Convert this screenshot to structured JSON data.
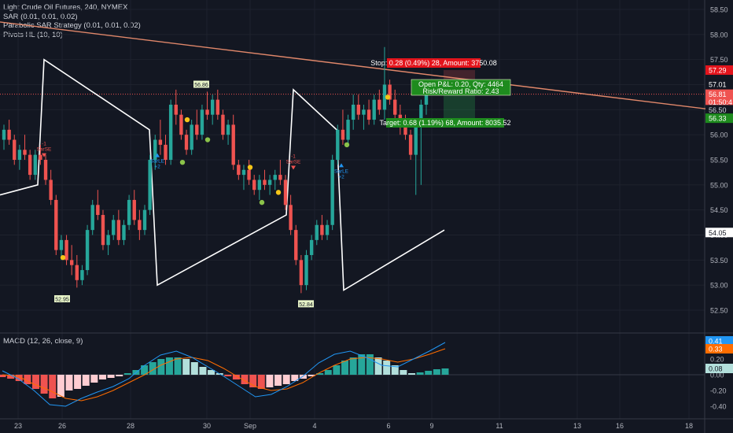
{
  "legend": {
    "title": "Light Crude Oil Futures, 240, NYMEX",
    "sar": "SAR (0.01, 0.01, 0.02)",
    "parabolic": "Parabolic SAR Strategy (0.01, 0.01, 0.02)",
    "pivots": "Pivots HL (10, 10)",
    "macd": "MACD (12, 26, close, 9)"
  },
  "colors": {
    "background": "#131722",
    "up": "#26a69a",
    "down": "#ef5350",
    "zigzag": "#ffffff",
    "trendline": "#e0876a",
    "stop": "#e3141c",
    "target": "#1e8b1e",
    "macd_line": "#2196f3",
    "signal_line": "#ff6d00",
    "sar_yellow": "#f5c518",
    "sar_green": "#8bc34a"
  },
  "trade": {
    "stop": "Stop: 0.28 (0.49%) 28, Amount: 3750.08",
    "pnl": "Open P&L: 0.20, Qty: 4464",
    "rr": "Risk/Reward Ratio: 2.43",
    "target": "Target: 0.68 (1.19%) 68, Amount: 8035.52"
  },
  "pivot_labels": [
    "56.86",
    "52.95",
    "52.84"
  ],
  "signals": {
    "short": "SarSE",
    "long": "SarLE",
    "short_count": "-1",
    "long_count": "+2"
  },
  "price_badges": [
    {
      "text": "57.29",
      "bg": "#e3141c",
      "fg": "#ffffff"
    },
    {
      "text": "57.01",
      "bg": "#131722",
      "fg": "#ffffff"
    },
    {
      "text": "56.81",
      "bg": "#ef5350",
      "fg": "#ffffff"
    },
    {
      "text": "01:50:4",
      "bg": "#ef5350",
      "fg": "#ffffff"
    },
    {
      "text": "56.50",
      "bg": "#131722",
      "fg": "#d1d4dc"
    },
    {
      "text": "56.33",
      "bg": "#1e8b1e",
      "fg": "#ffffff"
    },
    {
      "text": "54.05",
      "bg": "#ffffff",
      "fg": "#131722"
    }
  ],
  "macd_badges": [
    {
      "text": "0.41",
      "bg": "#2196f3"
    },
    {
      "text": "0.33",
      "bg": "#ff6d00"
    },
    {
      "text": "0.08",
      "bg": "#b2dfdb"
    }
  ],
  "chart_data": {
    "type": "candlestick",
    "title": "Light Crude Oil Futures, 240, NYMEX",
    "y_axis": {
      "ticks": [
        52.5,
        53.0,
        53.5,
        54.0,
        54.5,
        55.0,
        55.5,
        56.0,
        56.5,
        57.0,
        57.5,
        58.0,
        58.5
      ],
      "range": [
        52.2,
        58.6
      ]
    },
    "x_axis": {
      "ticks": [
        "23",
        "26",
        "28",
        "30",
        "Sep",
        "4",
        "6",
        "9",
        "11",
        "13",
        "16",
        "18"
      ]
    },
    "candles": [
      [
        55.9,
        56.2,
        55.7,
        56.1
      ],
      [
        56.1,
        56.3,
        55.8,
        55.9
      ],
      [
        55.9,
        56.0,
        55.4,
        55.5
      ],
      [
        55.5,
        55.8,
        55.3,
        55.7
      ],
      [
        55.7,
        56.0,
        55.5,
        55.6
      ],
      [
        55.6,
        55.7,
        55.1,
        55.2
      ],
      [
        55.2,
        55.7,
        55.1,
        55.6
      ],
      [
        55.6,
        55.8,
        55.4,
        55.5
      ],
      [
        55.5,
        55.6,
        55.0,
        55.1
      ],
      [
        55.1,
        55.3,
        54.6,
        54.7
      ],
      [
        54.7,
        54.8,
        53.6,
        53.7
      ],
      [
        53.7,
        54.0,
        53.5,
        53.9
      ],
      [
        53.9,
        54.0,
        53.4,
        53.5
      ],
      [
        53.5,
        53.8,
        53.2,
        53.4
      ],
      [
        53.4,
        53.6,
        52.95,
        53.1
      ],
      [
        53.1,
        53.4,
        53.0,
        53.3
      ],
      [
        53.3,
        54.2,
        53.2,
        54.1
      ],
      [
        54.1,
        54.7,
        54.0,
        54.6
      ],
      [
        54.6,
        54.9,
        54.3,
        54.4
      ],
      [
        54.4,
        54.5,
        53.7,
        53.8
      ],
      [
        53.8,
        54.1,
        53.6,
        54.0
      ],
      [
        54.0,
        54.4,
        53.9,
        54.3
      ],
      [
        54.3,
        54.5,
        53.8,
        53.9
      ],
      [
        53.9,
        54.3,
        53.8,
        54.2
      ],
      [
        54.2,
        54.8,
        54.1,
        54.7
      ],
      [
        54.7,
        54.9,
        54.2,
        54.3
      ],
      [
        54.3,
        54.5,
        53.9,
        54.1
      ],
      [
        54.1,
        54.6,
        54.0,
        54.5
      ],
      [
        54.5,
        55.6,
        54.4,
        55.5
      ],
      [
        55.5,
        56.0,
        55.3,
        55.9
      ],
      [
        55.9,
        56.3,
        55.6,
        55.8
      ],
      [
        55.8,
        56.0,
        55.4,
        55.5
      ],
      [
        55.5,
        56.7,
        55.4,
        56.6
      ],
      [
        56.6,
        56.9,
        56.2,
        56.4
      ],
      [
        56.4,
        56.5,
        55.9,
        56.0
      ],
      [
        56.0,
        56.1,
        55.6,
        55.7
      ],
      [
        55.7,
        56.3,
        55.6,
        56.2
      ],
      [
        56.2,
        56.5,
        55.9,
        56.0
      ],
      [
        56.0,
        56.6,
        55.9,
        56.5
      ],
      [
        56.5,
        56.86,
        56.3,
        56.4
      ],
      [
        56.4,
        56.8,
        56.2,
        56.7
      ],
      [
        56.7,
        56.9,
        56.3,
        56.4
      ],
      [
        56.4,
        56.5,
        55.9,
        56.0
      ],
      [
        56.0,
        56.3,
        55.8,
        56.2
      ],
      [
        56.2,
        56.4,
        55.3,
        55.4
      ],
      [
        55.4,
        55.5,
        55.1,
        55.2
      ],
      [
        55.2,
        55.4,
        54.9,
        55.3
      ],
      [
        55.3,
        55.5,
        55.0,
        55.1
      ],
      [
        55.1,
        55.2,
        54.8,
        54.9
      ],
      [
        54.9,
        55.2,
        54.7,
        55.1
      ],
      [
        55.1,
        55.3,
        54.9,
        55.0
      ],
      [
        55.0,
        55.2,
        54.8,
        55.1
      ],
      [
        55.1,
        55.3,
        54.9,
        55.2
      ],
      [
        55.2,
        55.5,
        55.0,
        55.1
      ],
      [
        55.1,
        55.2,
        54.5,
        54.6
      ],
      [
        54.6,
        54.8,
        54.0,
        54.1
      ],
      [
        54.1,
        54.2,
        53.4,
        53.5
      ],
      [
        53.5,
        53.6,
        52.84,
        53.0
      ],
      [
        53.0,
        53.7,
        52.9,
        53.6
      ],
      [
        53.6,
        54.0,
        53.5,
        53.9
      ],
      [
        53.9,
        54.3,
        53.8,
        54.2
      ],
      [
        54.2,
        54.4,
        53.9,
        54.0
      ],
      [
        54.0,
        54.3,
        53.9,
        54.2
      ],
      [
        54.2,
        55.6,
        54.1,
        55.5
      ],
      [
        55.5,
        56.2,
        55.4,
        56.1
      ],
      [
        56.1,
        56.5,
        55.8,
        55.9
      ],
      [
        55.9,
        56.4,
        55.8,
        56.3
      ],
      [
        56.3,
        56.8,
        56.1,
        56.6
      ],
      [
        56.6,
        56.8,
        56.3,
        56.4
      ],
      [
        56.4,
        56.6,
        56.1,
        56.5
      ],
      [
        56.5,
        56.7,
        56.2,
        56.3
      ],
      [
        56.3,
        56.8,
        56.2,
        56.7
      ],
      [
        56.7,
        56.9,
        56.4,
        56.5
      ],
      [
        56.5,
        57.75,
        56.3,
        57.0
      ],
      [
        57.0,
        57.1,
        56.6,
        56.7
      ],
      [
        56.7,
        56.9,
        56.3,
        56.4
      ],
      [
        56.4,
        56.6,
        56.0,
        56.2
      ],
      [
        56.2,
        56.4,
        55.9,
        56.0
      ],
      [
        56.0,
        56.1,
        55.5,
        55.6
      ],
      [
        55.6,
        56.3,
        54.8,
        56.2
      ],
      [
        56.2,
        56.7,
        55.0,
        56.6
      ],
      [
        56.6,
        57.0,
        56.4,
        56.81
      ]
    ],
    "pivots_hl": [
      {
        "label": "56.86"
      },
      {
        "label": "52.95"
      },
      {
        "label": "52.84"
      }
    ],
    "current_price": 56.81,
    "trade": {
      "entry": 56.81,
      "stop": 57.29,
      "target": 56.33
    },
    "zigzag_levels": [
      54.8,
      55.0,
      57.5,
      56.1,
      53.0,
      54.4,
      56.9,
      56.1,
      52.9,
      54.1
    ],
    "macd": {
      "title": "MACD (12, 26, close, 9)",
      "y_ticks": [
        -0.4,
        -0.2,
        0.0,
        0.2,
        0.4
      ],
      "macd_last": 0.41,
      "signal_last": 0.33,
      "hist_last": 0.08
    }
  }
}
